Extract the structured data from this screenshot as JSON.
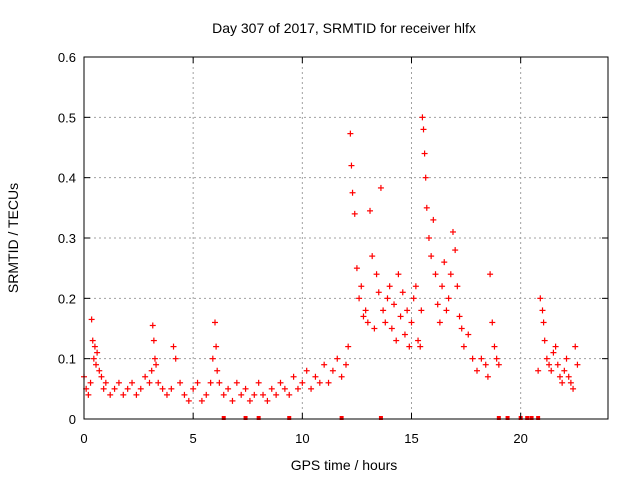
{
  "chart_data": {
    "type": "scatter",
    "title": "Day 307 of 2017, SRMTID for receiver hlfx",
    "xlabel": "GPS time / hours",
    "ylabel": "SRMTID / TECUs",
    "xlim": [
      0,
      24
    ],
    "ylim": [
      0,
      0.6
    ],
    "xticks": [
      0,
      5,
      10,
      15,
      20
    ],
    "yticks": [
      0,
      0.1,
      0.2,
      0.3,
      0.4,
      0.5,
      0.6
    ],
    "xtick_labels": [
      "0",
      "5",
      "10",
      "15",
      "20"
    ],
    "ytick_labels": [
      "0",
      "0.1",
      "0.2",
      "0.3",
      "0.4",
      "0.5",
      "0.6"
    ],
    "grid": true,
    "series": [
      {
        "name": "SRMTID",
        "marker": "+",
        "color": "#ff0000",
        "x": [
          0.0,
          0.1,
          0.2,
          0.3,
          0.35,
          0.4,
          0.45,
          0.5,
          0.55,
          0.6,
          0.7,
          0.8,
          0.9,
          1.0,
          1.2,
          1.4,
          1.6,
          1.8,
          2.0,
          2.2,
          2.4,
          2.6,
          2.8,
          3.0,
          3.1,
          3.15,
          3.2,
          3.25,
          3.3,
          3.4,
          3.6,
          3.8,
          4.0,
          4.1,
          4.2,
          4.4,
          4.6,
          4.8,
          5.0,
          5.2,
          5.4,
          5.6,
          5.8,
          5.9,
          6.0,
          6.05,
          6.1,
          6.2,
          6.4,
          6.6,
          6.8,
          7.0,
          7.2,
          7.4,
          7.6,
          7.8,
          8.0,
          8.2,
          8.4,
          8.6,
          8.8,
          9.0,
          9.2,
          9.4,
          9.6,
          9.8,
          10.0,
          10.2,
          10.4,
          10.6,
          10.8,
          11.0,
          11.2,
          11.4,
          11.6,
          11.8,
          12.0,
          12.1,
          12.2,
          12.25,
          12.3,
          12.4,
          12.5,
          12.6,
          12.7,
          12.8,
          12.9,
          13.0,
          13.1,
          13.2,
          13.3,
          13.4,
          13.5,
          13.6,
          13.7,
          13.8,
          13.9,
          14.0,
          14.1,
          14.2,
          14.3,
          14.4,
          14.5,
          14.6,
          14.7,
          14.8,
          14.9,
          15.0,
          15.1,
          15.2,
          15.3,
          15.4,
          15.45,
          15.5,
          15.55,
          15.6,
          15.65,
          15.7,
          15.8,
          15.9,
          16.0,
          16.1,
          16.2,
          16.3,
          16.4,
          16.5,
          16.6,
          16.7,
          16.8,
          16.9,
          17.0,
          17.1,
          17.2,
          17.3,
          17.4,
          17.6,
          17.8,
          18.0,
          18.2,
          18.4,
          18.5,
          18.6,
          18.7,
          18.8,
          18.9,
          19.0,
          20.8,
          20.9,
          21.0,
          21.05,
          21.1,
          21.2,
          21.3,
          21.4,
          21.5,
          21.6,
          21.7,
          21.8,
          21.9,
          22.0,
          22.1,
          22.2,
          22.3,
          22.4,
          22.5,
          22.6
        ],
        "y": [
          0.07,
          0.05,
          0.04,
          0.06,
          0.165,
          0.13,
          0.1,
          0.12,
          0.09,
          0.11,
          0.08,
          0.07,
          0.05,
          0.06,
          0.04,
          0.05,
          0.06,
          0.04,
          0.05,
          0.06,
          0.04,
          0.05,
          0.07,
          0.06,
          0.08,
          0.155,
          0.13,
          0.1,
          0.09,
          0.06,
          0.05,
          0.04,
          0.05,
          0.12,
          0.1,
          0.06,
          0.04,
          0.03,
          0.05,
          0.06,
          0.03,
          0.04,
          0.06,
          0.1,
          0.16,
          0.12,
          0.08,
          0.06,
          0.04,
          0.05,
          0.03,
          0.06,
          0.04,
          0.05,
          0.03,
          0.04,
          0.06,
          0.04,
          0.03,
          0.05,
          0.04,
          0.06,
          0.05,
          0.04,
          0.07,
          0.05,
          0.06,
          0.08,
          0.05,
          0.07,
          0.06,
          0.09,
          0.06,
          0.08,
          0.1,
          0.07,
          0.09,
          0.12,
          0.473,
          0.42,
          0.375,
          0.34,
          0.25,
          0.2,
          0.22,
          0.17,
          0.18,
          0.16,
          0.345,
          0.27,
          0.15,
          0.24,
          0.21,
          0.383,
          0.18,
          0.16,
          0.2,
          0.22,
          0.15,
          0.19,
          0.13,
          0.24,
          0.17,
          0.21,
          0.14,
          0.18,
          0.12,
          0.16,
          0.2,
          0.22,
          0.13,
          0.12,
          0.18,
          0.5,
          0.48,
          0.44,
          0.4,
          0.35,
          0.3,
          0.27,
          0.33,
          0.24,
          0.19,
          0.16,
          0.22,
          0.26,
          0.18,
          0.2,
          0.24,
          0.31,
          0.28,
          0.22,
          0.17,
          0.15,
          0.12,
          0.14,
          0.1,
          0.08,
          0.1,
          0.09,
          0.07,
          0.24,
          0.16,
          0.12,
          0.1,
          0.09,
          0.08,
          0.2,
          0.18,
          0.16,
          0.13,
          0.1,
          0.09,
          0.08,
          0.11,
          0.12,
          0.09,
          0.07,
          0.06,
          0.08,
          0.1,
          0.07,
          0.06,
          0.05,
          0.12,
          0.09
        ]
      }
    ],
    "zero_markers_x": [
      6.4,
      7.4,
      8.0,
      9.4,
      11.8,
      13.6,
      19.0,
      19.4,
      20.0,
      20.3,
      20.5,
      20.8
    ]
  }
}
